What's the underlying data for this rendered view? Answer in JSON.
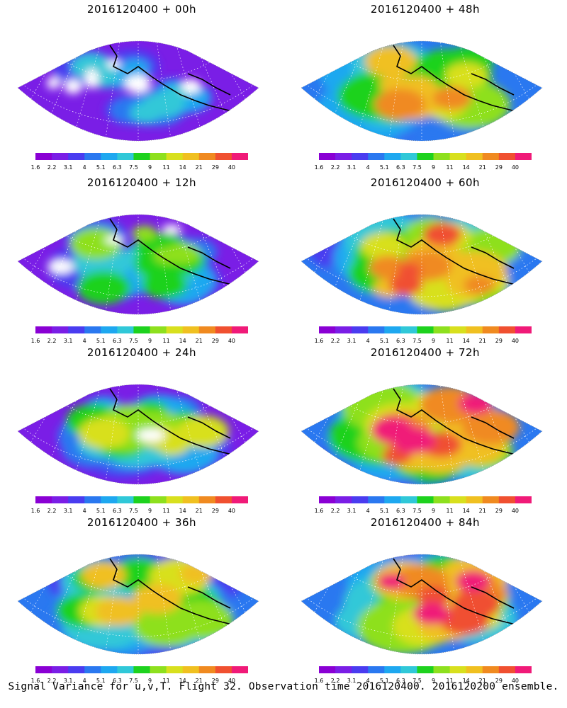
{
  "panels": [
    {
      "title": "2016120400 + 00h",
      "intensity": 0.15
    },
    {
      "title": "2016120400 + 48h",
      "intensity": 0.72
    },
    {
      "title": "2016120400 + 12h",
      "intensity": 0.3
    },
    {
      "title": "2016120400 + 60h",
      "intensity": 0.8
    },
    {
      "title": "2016120400 + 24h",
      "intensity": 0.45
    },
    {
      "title": "2016120400 + 72h",
      "intensity": 0.85
    },
    {
      "title": "2016120400 + 36h",
      "intensity": 0.6
    },
    {
      "title": "2016120400 + 84h",
      "intensity": 0.88
    }
  ],
  "colorbar": {
    "labels": [
      "1.6",
      "2.2",
      "3.1",
      "4",
      "5.1",
      "6.3",
      "7.5",
      "9",
      "11",
      "14",
      "21",
      "29",
      "40"
    ],
    "colors": [
      "#8a00d4",
      "#7a1ee6",
      "#4a3cf0",
      "#2a78f0",
      "#1ea8f0",
      "#30c8d8",
      "#1ed21e",
      "#8ee01e",
      "#d8e01e",
      "#f0c020",
      "#f08a20",
      "#f05030",
      "#f01a78"
    ]
  },
  "caption": "Signal Variance for u,v,T. Flight 32. Observation time 2016120400. 2016120200 ensemble."
}
